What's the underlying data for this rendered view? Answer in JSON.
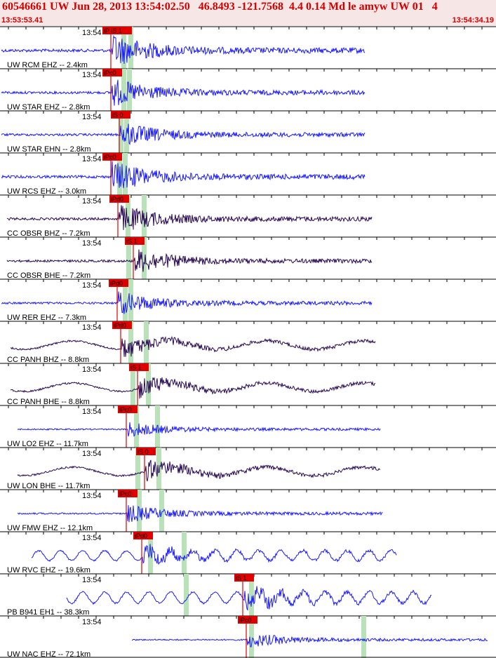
{
  "header": {
    "title": "60546661 UW Jun 28, 2013 13:54:02.50   46.8493 -121.7568  4.4 0.14 Md le amyw UW 01   4",
    "start_time": "13:53:53.41",
    "end_time": "13:54:34.19"
  },
  "colors": {
    "header_bg": "#f7e6e6",
    "header_text": "#d40000",
    "pick": "#e00000",
    "trace_short": "#1a1aff",
    "trace_broadband": "#2a0a55",
    "window": "#b9e2b9"
  },
  "panels": [
    {
      "station": "UW RCM EHZ -- 2.4km",
      "minute": "13:54",
      "pick_label": "iP iS 1",
      "color_key": "trace_short"
    },
    {
      "station": "UW STAR EHZ -- 2.8km",
      "minute": "13:54",
      "pick_label": "iPc0",
      "color_key": "trace_short"
    },
    {
      "station": "UW STAR EHN -- 2.8km",
      "minute": "13:54",
      "pick_label": "iS 0",
      "color_key": "trace_short"
    },
    {
      "station": "UW RCS EHZ -- 3.0km",
      "minute": "13:54",
      "pick_label": "iPc0",
      "color_key": "trace_short"
    },
    {
      "station": "CC OBSR BHZ -- 7.2km",
      "minute": "13:54",
      "pick_label": "iPd0",
      "color_key": "trace_broadband"
    },
    {
      "station": "CC OBSR BHE -- 7.2km",
      "minute": "13:54",
      "pick_label": "iS 1",
      "color_key": "trace_broadband"
    },
    {
      "station": "UW RER EHZ -- 7.3km",
      "minute": "13:54",
      "pick_label": "iPd0",
      "color_key": "trace_short"
    },
    {
      "station": "CC PANH BHZ -- 8.8km",
      "minute": "13:54",
      "pick_label": "iPd0",
      "color_key": "trace_broadband"
    },
    {
      "station": "CC PANH BHE -- 8.8km",
      "minute": "13:54",
      "pick_label": "iS 1",
      "color_key": "trace_broadband"
    },
    {
      "station": "UW LO2 EHZ -- 11.7km",
      "minute": "13:54",
      "pick_label": "iPc0",
      "color_key": "trace_short"
    },
    {
      "station": "UW LON BHE -- 11.7km",
      "minute": "13:54",
      "pick_label": "iS 0",
      "color_key": "trace_broadband"
    },
    {
      "station": "UW FMW EHZ -- 12.1km",
      "minute": "13:54",
      "pick_label": "iPc0",
      "color_key": "trace_short"
    },
    {
      "station": "UW RVC EHZ -- 19.6km",
      "minute": "13:54",
      "pick_label": "iPd0",
      "color_key": "trace_short"
    },
    {
      "station": "PB B941 EH1 -- 38.3km",
      "minute": "13:54",
      "pick_label": "iS 1",
      "color_key": "trace_short"
    },
    {
      "station": "UW NAC EHZ -- 72.1km",
      "minute": "13:54",
      "pick_label": "iPc0",
      "color_key": "trace_short"
    }
  ]
}
